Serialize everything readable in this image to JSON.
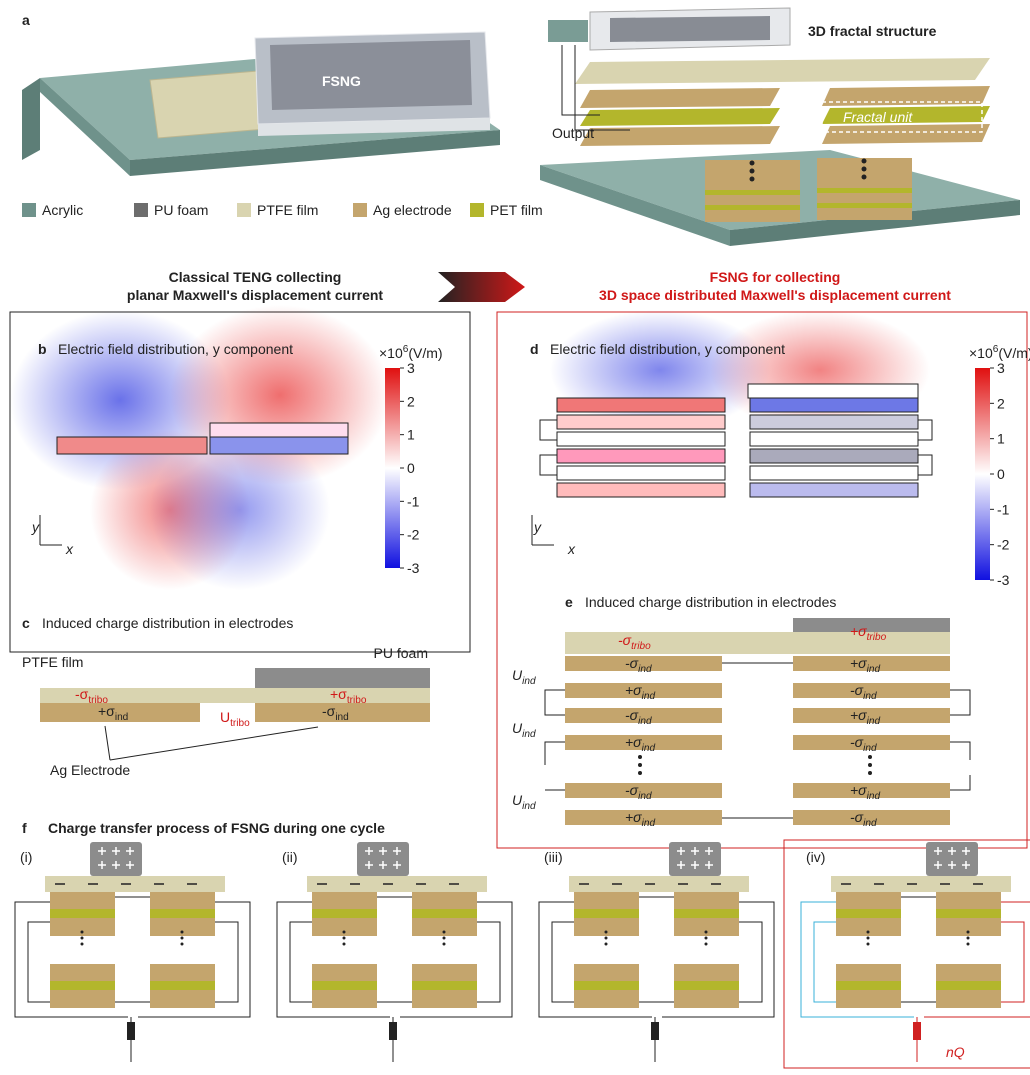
{
  "a": {
    "label": "a",
    "device": "FSNG",
    "structure": "3D fractal structure",
    "output": "Output",
    "unit": "Fractal unit",
    "legend": [
      {
        "name": "Acrylic",
        "color": "#6f928b"
      },
      {
        "name": "PU foam",
        "color": "#6d6d6d"
      },
      {
        "name": "PTFE film",
        "color": "#d9d4b0"
      },
      {
        "name": "Ag electrode",
        "color": "#c4a56d"
      },
      {
        "name": "PET film",
        "color": "#b3b62c"
      }
    ]
  },
  "header_left": [
    "Classical TENG collecting",
    "planar Maxwell's displacement current"
  ],
  "header_right": [
    "FSNG for collecting",
    "3D space distributed Maxwell's displacement current"
  ],
  "b": {
    "label": "b",
    "title": "Electric field distribution, y component",
    "axis_y": "y",
    "axis_x": "x"
  },
  "d": {
    "label": "d",
    "title": "Electric field distribution, y component",
    "axis_y": "y",
    "axis_x": "x"
  },
  "colorbar": {
    "prefix": "×10",
    "exp": "6",
    "unit": "(V/m)",
    "ticks": [
      3,
      2,
      1,
      0,
      -1,
      -2,
      -3
    ]
  },
  "c": {
    "label": "c",
    "title": "Induced charge distribution in electrodes",
    "ptfe": "PTFE film",
    "pu": "PU foam",
    "tribo_neg": {
      "s": "-σ",
      "sub": "tribo"
    },
    "tribo_pos": {
      "s": "+σ",
      "sub": "tribo"
    },
    "ind_pos": {
      "s": "+σ",
      "sub": "ind"
    },
    "ind_neg": {
      "s": "-σ",
      "sub": "ind"
    },
    "u": {
      "s": "U",
      "sub": "tribo"
    },
    "electrode": "Ag Electrode"
  },
  "e": {
    "label": "e",
    "title": "Induced charge distribution in electrodes",
    "tribo_neg": {
      "s": "-σ",
      "sub": "tribo"
    },
    "tribo_pos": {
      "s": "+σ",
      "sub": "tribo"
    },
    "left": [
      {
        "s": "-σ",
        "sub": "ind"
      },
      {
        "s": "+σ",
        "sub": "ind"
      },
      {
        "s": "-σ",
        "sub": "ind"
      },
      {
        "s": "+σ",
        "sub": "ind"
      },
      {
        "s": "-σ",
        "sub": "ind"
      },
      {
        "s": "+σ",
        "sub": "ind"
      }
    ],
    "right": [
      {
        "s": "+σ",
        "sub": "ind"
      },
      {
        "s": "-σ",
        "sub": "ind"
      },
      {
        "s": "+σ",
        "sub": "ind"
      },
      {
        "s": "-σ",
        "sub": "ind"
      },
      {
        "s": "+σ",
        "sub": "ind"
      },
      {
        "s": "-σ",
        "sub": "ind"
      }
    ],
    "u": [
      {
        "s": "U",
        "sub": "ind"
      },
      {
        "s": "U",
        "sub": "ind"
      },
      {
        "s": "U",
        "sub": "ind"
      }
    ]
  },
  "f": {
    "label": "f",
    "title": "Charge transfer process of FSNG during one cycle",
    "steps": [
      "(i)",
      "(ii)",
      "(iii)",
      "(iv)"
    ],
    "flow": "nQ"
  }
}
